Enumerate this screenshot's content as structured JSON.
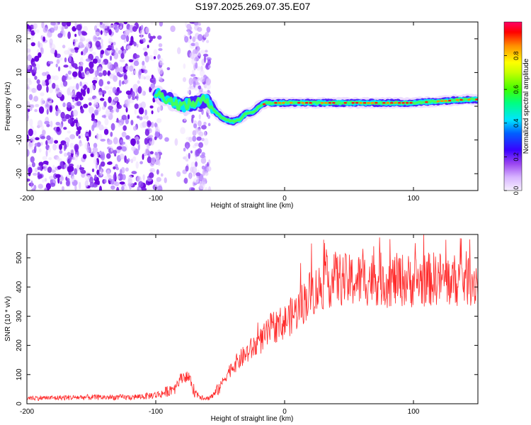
{
  "title": "S197.2025.269.07.35.E07",
  "chart_data": [
    {
      "type": "heatmap",
      "title": "S197.2025.269.07.35.E07",
      "xlabel": "Height of straight line (km)",
      "ylabel": "Frequency (Hz)",
      "xlim": [
        -200,
        150
      ],
      "ylim": [
        -25,
        25
      ],
      "xticks": [
        -200,
        -100,
        0,
        100
      ],
      "yticks": [
        -20,
        -10,
        0,
        10,
        20
      ],
      "xtick_labels": [
        "-200",
        "-100",
        "0",
        "100"
      ],
      "ytick_labels": [
        "-20",
        "-10",
        "0",
        "10",
        "20"
      ],
      "colorbar": {
        "label": "Normalized spectral amplitude",
        "range": [
          0,
          1
        ],
        "ticks": [
          0,
          0.2,
          0.4,
          0.6,
          0.8
        ],
        "tick_labels": [
          "0.0",
          "0.2",
          "0.4",
          "0.6",
          "0.8"
        ],
        "colormap": [
          "#f5eaff",
          "#c99cff",
          "#8a2be2",
          "#1f1fff",
          "#00e5ff",
          "#00ff7f",
          "#66ff00",
          "#ffff00",
          "#ff8c00",
          "#ff0000",
          "#ff0066"
        ]
      },
      "ridge": {
        "x": [
          -100,
          -90,
          -80,
          -70,
          -60,
          -55,
          -50,
          -45,
          -40,
          -35,
          -30,
          -25,
          -20,
          -15,
          -10,
          0,
          20,
          40,
          60,
          80,
          100,
          120,
          140,
          150
        ],
        "y": [
          4,
          2,
          0,
          1,
          2,
          -1,
          -3,
          -4,
          -4.5,
          -4,
          -2,
          -2,
          0,
          1,
          1,
          1,
          1,
          1,
          1,
          1,
          1,
          1.5,
          2,
          2
        ]
      },
      "noise_region_x": [
        -200,
        -55
      ],
      "noise_density_note": "scattered purple speckle"
    },
    {
      "type": "line",
      "xlabel": "Height of straight line (km)",
      "ylabel": "SNR (10 * v/v)",
      "xlim": [
        -200,
        150
      ],
      "ylim": [
        0,
        580
      ],
      "xticks": [
        -200,
        -100,
        0,
        100
      ],
      "yticks": [
        0,
        100,
        200,
        300,
        400,
        500
      ],
      "xtick_labels": [
        "-200",
        "-100",
        "0",
        "100"
      ],
      "ytick_labels": [
        "0",
        "100",
        "200",
        "300",
        "400",
        "500"
      ],
      "series": [
        {
          "name": "SNR",
          "color": "#ff2a2a",
          "x": [
            -200,
            -180,
            -160,
            -140,
            -120,
            -110,
            -100,
            -95,
            -90,
            -85,
            -80,
            -78,
            -75,
            -72,
            -70,
            -65,
            -60,
            -55,
            -50,
            -45,
            -40,
            -35,
            -30,
            -25,
            -20,
            -15,
            -10,
            -5,
            0,
            5,
            10,
            15,
            20,
            25,
            30,
            35,
            40,
            50,
            60,
            70,
            80,
            90,
            100,
            110,
            120,
            130,
            140,
            150
          ],
          "values": [
            20,
            20,
            22,
            22,
            22,
            25,
            30,
            35,
            45,
            60,
            90,
            95,
            90,
            70,
            40,
            25,
            18,
            30,
            60,
            100,
            130,
            150,
            170,
            190,
            210,
            230,
            260,
            270,
            280,
            300,
            320,
            350,
            380,
            390,
            410,
            420,
            430,
            420,
            425,
            430,
            420,
            425,
            420,
            425,
            430,
            420,
            430,
            420
          ]
        }
      ]
    }
  ]
}
